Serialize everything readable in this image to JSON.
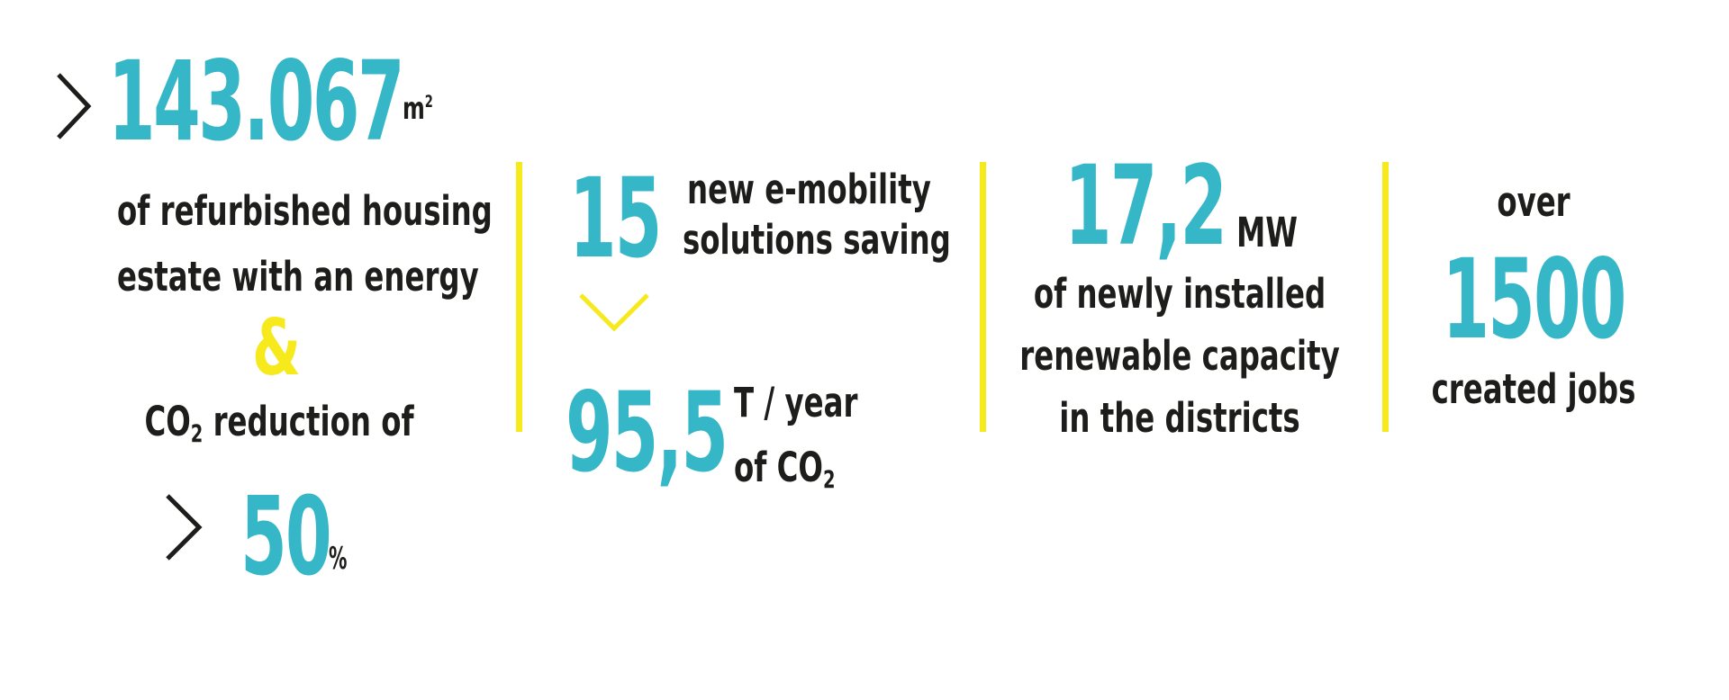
{
  "colors": {
    "accent_teal": "#35b7c8",
    "accent_yellow": "#f6e91c",
    "text_dark": "#1d1d1b"
  },
  "col1": {
    "arrow_icon": "chevron-right-icon",
    "area_value": "143.067",
    "area_unit": "m",
    "area_unit_exp": "2",
    "line1": "of refurbished housing",
    "line2": "estate with an energy",
    "ampersand": "&",
    "co2_prefix": "CO",
    "co2_sub": "2",
    "co2_suffix": " reduction of",
    "reduction_value": "50",
    "reduction_unit": "%"
  },
  "col2": {
    "mobility_value": "15",
    "mobility_line1": "new e-mobility",
    "mobility_line2": "solutions saving",
    "arrow_icon": "chevron-down-icon",
    "co2_value": "95,5",
    "co2_unit_line1": "T / year",
    "co2_unit_prefix": "of CO",
    "co2_unit_sub": "2"
  },
  "col3": {
    "capacity_value": "17,2",
    "capacity_unit": "MW",
    "line1": "of newly installed",
    "line2": "renewable capacity",
    "line3": "in the districts"
  },
  "col4": {
    "over_label": "over",
    "jobs_value": "1500",
    "jobs_label": "created jobs"
  }
}
